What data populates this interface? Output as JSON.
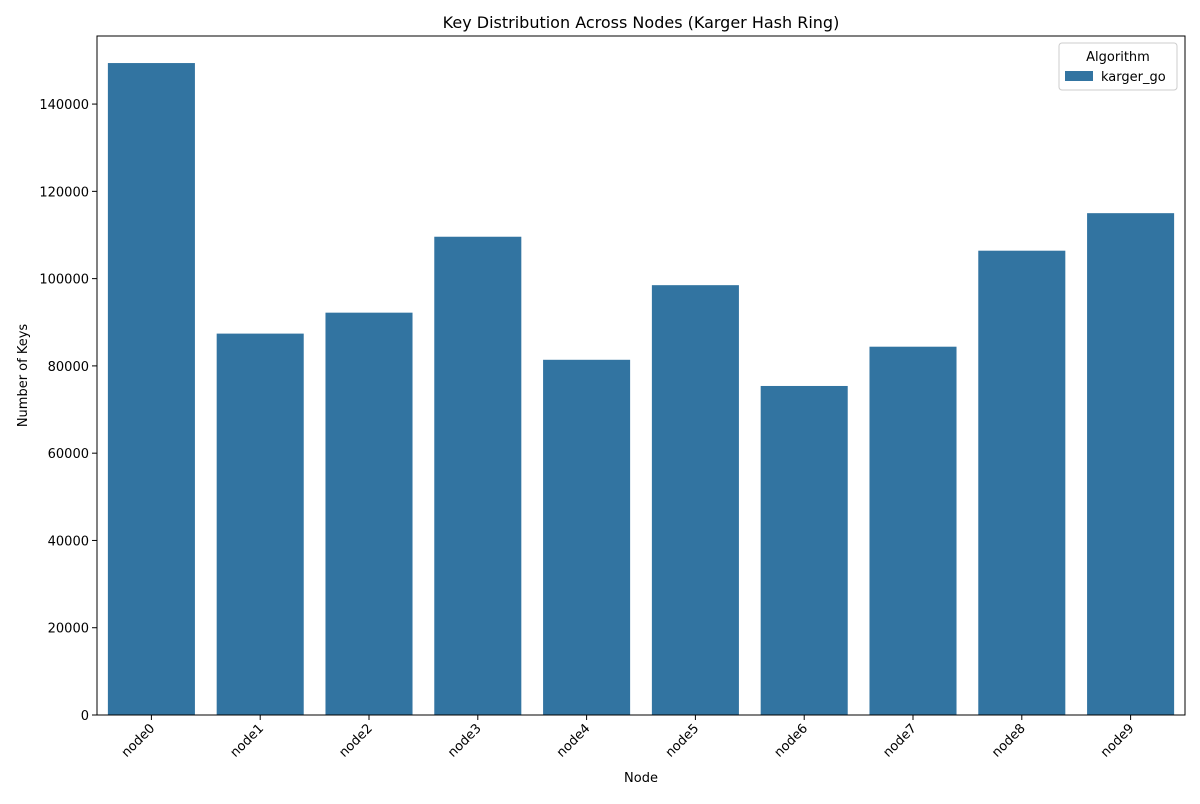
{
  "chart_data": {
    "type": "bar",
    "title": "Key Distribution Across Nodes (Karger Hash Ring)",
    "xlabel": "Node",
    "ylabel": "Number of Keys",
    "categories": [
      "node0",
      "node1",
      "node2",
      "node3",
      "node4",
      "node5",
      "node6",
      "node7",
      "node8",
      "node9"
    ],
    "series": [
      {
        "name": "karger_go",
        "color": "#3274a1",
        "values": [
          149400,
          87400,
          92200,
          109600,
          81400,
          98500,
          75400,
          84400,
          106400,
          115000
        ]
      }
    ],
    "ylim": [
      0,
      155600
    ],
    "yticks": [
      0,
      20000,
      40000,
      60000,
      80000,
      100000,
      120000,
      140000
    ],
    "ytick_labels": [
      "0",
      "20000",
      "40000",
      "60000",
      "80000",
      "100000",
      "120000",
      "140000"
    ],
    "xtick_rotation": "45deg",
    "grid": false,
    "legend": {
      "title": "Algorithm",
      "placement": "top-right",
      "entries": [
        "karger_go"
      ]
    }
  }
}
